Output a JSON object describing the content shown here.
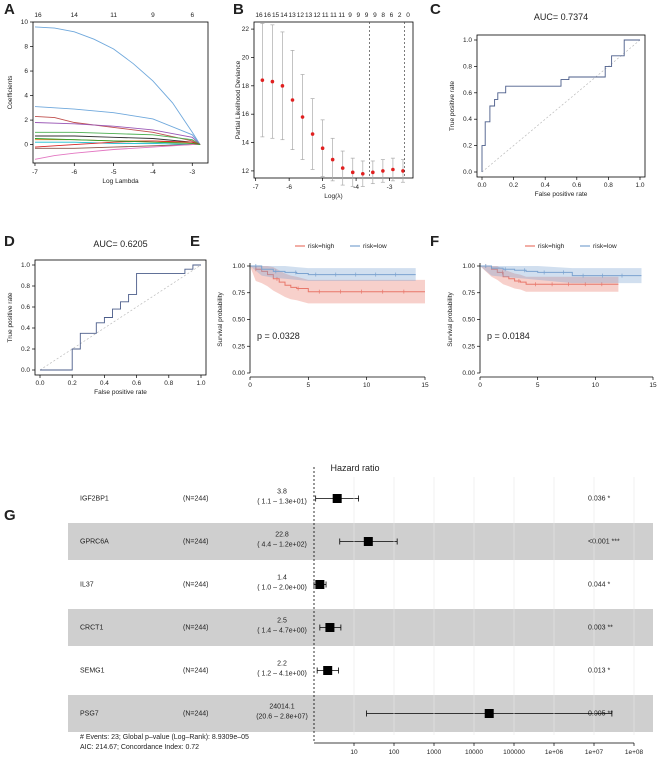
{
  "panel_labels": [
    "A",
    "B",
    "C",
    "D",
    "E",
    "F",
    "G"
  ],
  "chart_data": [
    {
      "panel": "A",
      "type": "line",
      "title": "",
      "xlabel": "Log Lambda",
      "ylabel": "Coefficients",
      "xlim": [
        -7,
        -2.6
      ],
      "ylim": [
        -1.5,
        10
      ],
      "xticks": [
        "-7",
        "-6",
        "-5",
        "-4",
        "-3"
      ],
      "yticks": [
        "0",
        "2",
        "4",
        "6",
        "8",
        "10"
      ],
      "top_ticks": [
        "16",
        "14",
        "11",
        "9",
        "6"
      ],
      "series": [
        {
          "name": "c1",
          "color": "#6fa8dc",
          "x": [
            -7,
            -6.5,
            -6,
            -5.5,
            -5,
            -4.5,
            -4,
            -3.5,
            -3,
            -2.8
          ],
          "values": [
            9.6,
            9.5,
            9.2,
            8.6,
            7.8,
            6.6,
            5.2,
            3.4,
            1.0,
            0
          ]
        },
        {
          "name": "c2",
          "color": "#6fa8dc",
          "x": [
            -7,
            -6,
            -5,
            -4,
            -3,
            -2.8
          ],
          "values": [
            3.1,
            2.9,
            2.6,
            2.1,
            0.8,
            0
          ]
        },
        {
          "name": "c3",
          "color": "#c0504d",
          "x": [
            -7,
            -6.5,
            -6,
            -5,
            -4,
            -3,
            -2.8
          ],
          "values": [
            2.3,
            2.2,
            1.8,
            1.4,
            1.0,
            0.3,
            0
          ]
        },
        {
          "name": "c4",
          "color": "#9b59b6",
          "x": [
            -7,
            -6,
            -5,
            -4,
            -3,
            -2.8
          ],
          "values": [
            1.8,
            1.7,
            1.5,
            1.2,
            0.6,
            0
          ]
        },
        {
          "name": "c5",
          "color": "#4caf50",
          "x": [
            -7,
            -6,
            -5,
            -4,
            -3,
            -2.8
          ],
          "values": [
            1.0,
            1.0,
            0.9,
            0.8,
            0.4,
            0
          ]
        },
        {
          "name": "c6",
          "color": "#333333",
          "x": [
            -7,
            -6,
            -5,
            -4,
            -3,
            -2.8
          ],
          "values": [
            0.7,
            0.7,
            0.6,
            0.5,
            0.2,
            0
          ]
        },
        {
          "name": "c7",
          "color": "#e67e22",
          "x": [
            -7,
            -6,
            -5,
            -4,
            -3,
            -2.8
          ],
          "values": [
            0.4,
            0.4,
            0.3,
            0.3,
            0.1,
            0
          ]
        },
        {
          "name": "c8",
          "color": "#17becf",
          "x": [
            -7,
            -6,
            -5,
            -4,
            -3,
            -2.8
          ],
          "values": [
            0.2,
            0.2,
            0.1,
            0.1,
            0,
            0
          ]
        },
        {
          "name": "c9",
          "color": "#8c564b",
          "x": [
            -7,
            -6,
            -5,
            -4,
            -3,
            -2.8
          ],
          "values": [
            -0.3,
            -0.3,
            -0.2,
            -0.1,
            0,
            0
          ]
        },
        {
          "name": "c10",
          "color": "#d62728",
          "x": [
            -7,
            -6,
            -5,
            -4,
            -3,
            -2.8
          ],
          "values": [
            -0.2,
            0,
            0.2,
            0.3,
            0.2,
            0
          ]
        },
        {
          "name": "c11",
          "color": "#e377c2",
          "x": [
            -7,
            -6.5,
            -6,
            -5,
            -4,
            -3,
            -2.8
          ],
          "values": [
            -1.2,
            -0.9,
            -0.7,
            -0.4,
            -0.2,
            0,
            0
          ]
        },
        {
          "name": "c12",
          "color": "#2ca02c",
          "x": [
            -7,
            -6,
            -5,
            -4,
            -3,
            -2.8
          ],
          "values": [
            0.5,
            0.4,
            0.3,
            0.2,
            0.1,
            0
          ]
        }
      ]
    },
    {
      "panel": "B",
      "type": "scatter",
      "title": "",
      "xlabel": "Log(λ)",
      "ylabel": "Partial Likelihood Deviance",
      "xlim": [
        -7,
        -2.3
      ],
      "ylim": [
        11.5,
        22.5
      ],
      "xticks": [
        "-7",
        "-6",
        "-5",
        "-4",
        "-3"
      ],
      "yticks": [
        "12",
        "14",
        "16",
        "18",
        "20",
        "22"
      ],
      "top_ticks": [
        "16",
        "16",
        "15",
        "14",
        "13",
        "12",
        "13",
        "12",
        "11",
        "11",
        "11",
        "9",
        "9",
        "9",
        "9",
        "8",
        "6",
        "2",
        "0"
      ],
      "vlines": [
        -3.6,
        -2.55
      ],
      "points": {
        "x": [
          -6.8,
          -6.5,
          -6.2,
          -5.9,
          -5.6,
          -5.3,
          -5.0,
          -4.7,
          -4.4,
          -4.1,
          -3.8,
          -3.5,
          -3.2,
          -2.9,
          -2.6
        ],
        "values": [
          18.4,
          18.3,
          18.0,
          17.0,
          15.8,
          14.6,
          13.6,
          12.8,
          12.2,
          11.9,
          11.8,
          11.9,
          12.0,
          12.1,
          12.0
        ],
        "err": [
          4,
          4,
          3.8,
          3.5,
          3.0,
          2.5,
          2.0,
          1.5,
          1.2,
          1.0,
          0.9,
          0.8,
          0.8,
          0.8,
          0.8
        ]
      }
    },
    {
      "panel": "C",
      "type": "line",
      "title": "AUC= 0.7374",
      "xlabel": "False positive rate",
      "ylabel": "True positive rate",
      "xlim": [
        0,
        1
      ],
      "ylim": [
        0,
        1
      ],
      "xticks": [
        "0.0",
        "0.2",
        "0.4",
        "0.6",
        "0.8",
        "1.0"
      ],
      "yticks": [
        "0.0",
        "0.2",
        "0.4",
        "0.6",
        "0.8",
        "1.0"
      ],
      "series": [
        {
          "name": "roc",
          "x": [
            0,
            0,
            0.02,
            0.02,
            0.05,
            0.05,
            0.08,
            0.08,
            0.1,
            0.1,
            0.15,
            0.15,
            0.5,
            0.5,
            0.55,
            0.55,
            0.78,
            0.78,
            0.82,
            0.82,
            0.9,
            0.9,
            1
          ],
          "values": [
            0,
            0.2,
            0.2,
            0.38,
            0.38,
            0.5,
            0.5,
            0.55,
            0.55,
            0.6,
            0.6,
            0.65,
            0.65,
            0.7,
            0.7,
            0.72,
            0.72,
            0.8,
            0.8,
            0.88,
            0.88,
            1,
            1
          ]
        }
      ]
    },
    {
      "panel": "D",
      "type": "line",
      "title": "AUC= 0.6205",
      "xlabel": "False positive rate",
      "ylabel": "True positive rate",
      "xlim": [
        0,
        1
      ],
      "ylim": [
        0,
        1
      ],
      "xticks": [
        "0.0",
        "0.2",
        "0.4",
        "0.6",
        "0.8",
        "1.0"
      ],
      "yticks": [
        "0.0",
        "0.2",
        "0.4",
        "0.6",
        "0.8",
        "1.0"
      ],
      "series": [
        {
          "name": "roc",
          "x": [
            0,
            0.2,
            0.2,
            0.25,
            0.25,
            0.35,
            0.35,
            0.4,
            0.4,
            0.45,
            0.45,
            0.5,
            0.5,
            0.55,
            0.55,
            0.6,
            0.6,
            0.9,
            0.9,
            0.95,
            0.95,
            1
          ],
          "values": [
            0,
            0,
            0.2,
            0.2,
            0.35,
            0.35,
            0.45,
            0.45,
            0.5,
            0.5,
            0.58,
            0.58,
            0.65,
            0.65,
            0.72,
            0.72,
            0.92,
            0.92,
            0.96,
            0.96,
            1,
            1
          ]
        }
      ]
    },
    {
      "panel": "E",
      "type": "line",
      "title": "",
      "xlabel": "",
      "ylabel": "Survival probability",
      "xlim": [
        0,
        15
      ],
      "ylim": [
        0,
        1
      ],
      "xticks": [
        "0",
        "5",
        "10",
        "15"
      ],
      "yticks": [
        "0.00",
        "0.25",
        "0.50",
        "0.75",
        "1.00"
      ],
      "pvalue": "p = 0.0328",
      "legend": [
        "risk=high",
        "risk=low"
      ],
      "series": [
        {
          "name": "risk=high",
          "color": "#e8776b",
          "x": [
            0,
            0.5,
            1,
            1.5,
            2,
            2.5,
            3,
            3.5,
            4,
            5,
            15
          ],
          "values": [
            1,
            0.97,
            0.95,
            0.92,
            0.88,
            0.85,
            0.82,
            0.8,
            0.79,
            0.76,
            0.76
          ],
          "lo": 0.65,
          "hi": 0.87
        },
        {
          "name": "risk=low",
          "color": "#7ba3d0",
          "x": [
            0,
            1,
            2,
            3,
            4,
            5,
            14.2
          ],
          "values": [
            1,
            0.97,
            0.95,
            0.94,
            0.93,
            0.92,
            0.92
          ],
          "lo": 0.86,
          "hi": 0.98
        }
      ]
    },
    {
      "panel": "F",
      "type": "line",
      "title": "",
      "xlabel": "",
      "ylabel": "Survival probability",
      "xlim": [
        0,
        15
      ],
      "ylim": [
        0,
        1
      ],
      "xticks": [
        "0",
        "5",
        "10",
        "15"
      ],
      "yticks": [
        "0.00",
        "0.25",
        "0.50",
        "0.75",
        "1.00"
      ],
      "pvalue": "p = 0.0184",
      "legend": [
        "risk=high",
        "risk=low"
      ],
      "series": [
        {
          "name": "risk=high",
          "color": "#e8776b",
          "x": [
            0,
            1,
            1.5,
            2,
            2.5,
            3,
            3.5,
            4,
            12
          ],
          "values": [
            1,
            0.97,
            0.94,
            0.9,
            0.88,
            0.86,
            0.85,
            0.83,
            0.83
          ],
          "lo": 0.76,
          "hi": 0.9
        },
        {
          "name": "risk=low",
          "color": "#7ba3d0",
          "x": [
            0,
            1,
            2,
            3,
            4,
            5,
            8,
            14
          ],
          "values": [
            1,
            0.98,
            0.97,
            0.96,
            0.95,
            0.94,
            0.91,
            0.91
          ],
          "lo": 0.84,
          "hi": 0.98
        }
      ]
    },
    {
      "panel": "G",
      "type": "table",
      "title": "Hazard ratio",
      "xticks": [
        "10",
        "100",
        "1000",
        "10000",
        "100000",
        "1e+06",
        "1e+07",
        "1e+08"
      ],
      "rows": [
        {
          "gene": "IGF2BP1",
          "n": "(N=244)",
          "hr": "3.8",
          "ci": "( 1.1 – 1.3e+01)",
          "p": "0.036 *",
          "est": 3.8,
          "lo": 1.1,
          "hi": 13,
          "shaded": false
        },
        {
          "gene": "GPRC6A",
          "n": "(N=244)",
          "hr": "22.8",
          "ci": "( 4.4 – 1.2e+02)",
          "p": "<0.001 ***",
          "est": 22.8,
          "lo": 4.4,
          "hi": 120,
          "shaded": true
        },
        {
          "gene": "IL37",
          "n": "(N=244)",
          "hr": "1.4",
          "ci": "( 1.0 – 2.0e+00)",
          "p": "0.044 *",
          "est": 1.4,
          "lo": 1.0,
          "hi": 2.0,
          "shaded": false
        },
        {
          "gene": "CRCT1",
          "n": "(N=244)",
          "hr": "2.5",
          "ci": "( 1.4 – 4.7e+00)",
          "p": "0.003 **",
          "est": 2.5,
          "lo": 1.4,
          "hi": 4.7,
          "shaded": true
        },
        {
          "gene": "SEMG1",
          "n": "(N=244)",
          "hr": "2.2",
          "ci": "( 1.2 – 4.1e+00)",
          "p": "0.013 *",
          "est": 2.2,
          "lo": 1.2,
          "hi": 4.1,
          "shaded": false
        },
        {
          "gene": "PSG7",
          "n": "(N=244)",
          "hr": "24014.1",
          "ci": "(20.6 – 2.8e+07)",
          "p": "0.005 **",
          "est": 24014.1,
          "lo": 20.6,
          "hi": 28000000,
          "shaded": true
        }
      ],
      "footer": [
        "# Events: 23; Global p–value (Log–Rank): 8.9309e–05",
        "AIC: 214.67; Concordance Index: 0.72"
      ]
    }
  ]
}
